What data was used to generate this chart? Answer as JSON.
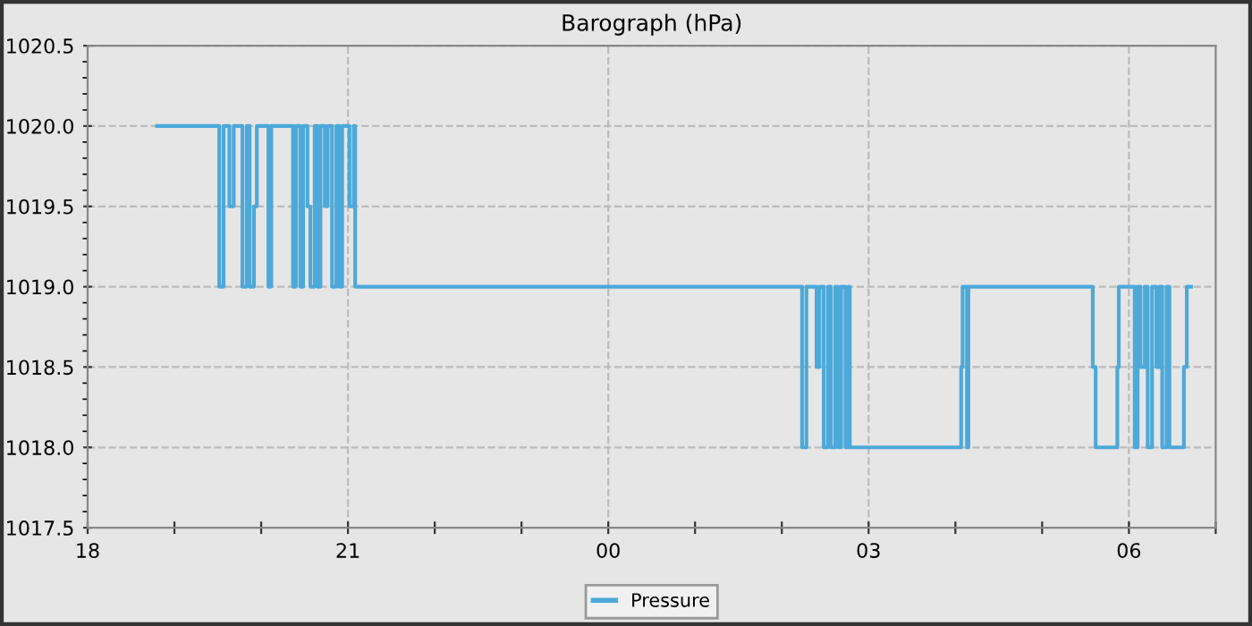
{
  "chart_data": {
    "type": "step",
    "title": "Barograph (hPa)",
    "x": [
      "2000-01-01T18:48",
      "2000-01-01T19:31",
      "2000-01-01T19:34",
      "2000-01-01T19:38",
      "2000-01-01T19:41",
      "2000-01-01T19:47",
      "2000-01-01T19:50",
      "2000-01-01T19:52",
      "2000-01-01T19:55",
      "2000-01-01T19:57",
      "2000-01-01T20:05",
      "2000-01-01T20:07",
      "2000-01-01T20:22",
      "2000-01-01T20:24",
      "2000-01-01T20:27",
      "2000-01-01T20:29",
      "2000-01-01T20:32",
      "2000-01-01T20:34",
      "2000-01-01T20:37",
      "2000-01-01T20:39",
      "2000-01-01T20:41",
      "2000-01-01T20:44",
      "2000-01-01T20:46",
      "2000-01-01T20:49",
      "2000-01-01T20:52",
      "2000-01-01T20:54",
      "2000-01-01T20:56",
      "2000-01-01T21:01",
      "2000-01-01T21:04",
      "2000-01-01T21:05",
      "2000-01-02T02:14",
      "2000-01-02T02:17",
      "2000-01-02T02:24",
      "2000-01-02T02:26",
      "2000-01-02T02:29",
      "2000-01-02T02:32",
      "2000-01-02T02:34",
      "2000-01-02T02:37",
      "2000-01-02T02:39",
      "2000-01-02T02:41",
      "2000-01-02T02:44",
      "2000-01-02T02:46",
      "2000-01-02T02:47",
      "2000-01-02T04:04",
      "2000-01-02T04:05",
      "2000-01-02T04:08",
      "2000-01-02T04:09",
      "2000-01-02T05:35",
      "2000-01-02T05:37",
      "2000-01-02T05:52",
      "2000-01-02T05:53",
      "2000-01-02T06:04",
      "2000-01-02T06:06",
      "2000-01-02T06:08",
      "2000-01-02T06:11",
      "2000-01-02T06:13",
      "2000-01-02T06:16",
      "2000-01-02T06:19",
      "2000-01-02T06:21",
      "2000-01-02T06:23",
      "2000-01-02T06:26",
      "2000-01-02T06:28",
      "2000-01-02T06:38",
      "2000-01-02T06:40",
      "2000-01-02T06:43"
    ],
    "series": [
      {
        "name": "Pressure",
        "color": "#4ca9d9",
        "values": [
          1020,
          1019,
          1020,
          1019.5,
          1020,
          1019,
          1020,
          1019,
          1019.5,
          1020,
          1019,
          1020,
          1019,
          1020,
          1019,
          1020,
          1019.5,
          1019,
          1020,
          1019,
          1020,
          1019.5,
          1020,
          1019,
          1020,
          1019,
          1020,
          1019.5,
          1020,
          1019,
          1018,
          1019,
          1018.5,
          1019,
          1018,
          1019,
          1018,
          1019,
          1018,
          1019,
          1018,
          1019,
          1018,
          1018.5,
          1019,
          1018,
          1019,
          1018.5,
          1018,
          1018.5,
          1019,
          1018,
          1019,
          1018.5,
          1019,
          1018,
          1019,
          1018.5,
          1019,
          1018,
          1019,
          1018,
          1018.5,
          1019,
          1019
        ]
      }
    ],
    "xlim": [
      "2000-01-01T18:00",
      "2000-01-02T07:00"
    ],
    "xticks": [
      {
        "value": "2000-01-01T18:00",
        "label": "18"
      },
      {
        "value": "2000-01-01T19:00",
        "label": null
      },
      {
        "value": "2000-01-01T20:00",
        "label": null
      },
      {
        "value": "2000-01-01T21:00",
        "label": "21"
      },
      {
        "value": "2000-01-01T22:00",
        "label": null
      },
      {
        "value": "2000-01-01T23:00",
        "label": null
      },
      {
        "value": "2000-01-02T00:00",
        "label": "00"
      },
      {
        "value": "2000-01-02T01:00",
        "label": null
      },
      {
        "value": "2000-01-02T02:00",
        "label": null
      },
      {
        "value": "2000-01-02T03:00",
        "label": "03"
      },
      {
        "value": "2000-01-02T04:00",
        "label": null
      },
      {
        "value": "2000-01-02T05:00",
        "label": null
      },
      {
        "value": "2000-01-02T06:00",
        "label": "06"
      },
      {
        "value": "2000-01-02T07:00",
        "label": null
      }
    ],
    "ylim": [
      1017.5,
      1020.5
    ],
    "yticks": [
      {
        "value": 1017.5,
        "label": "1017.5"
      },
      {
        "value": 1018.0,
        "label": "1018.0"
      },
      {
        "value": 1018.5,
        "label": "1018.5"
      },
      {
        "value": 1019.0,
        "label": "1019.0"
      },
      {
        "value": 1019.5,
        "label": "1019.5"
      },
      {
        "value": 1020.0,
        "label": "1020.0"
      },
      {
        "value": 1020.5,
        "label": "1020.5"
      }
    ],
    "grid": true,
    "legend": "bottom",
    "marker": "none",
    "line_style": "solid"
  }
}
